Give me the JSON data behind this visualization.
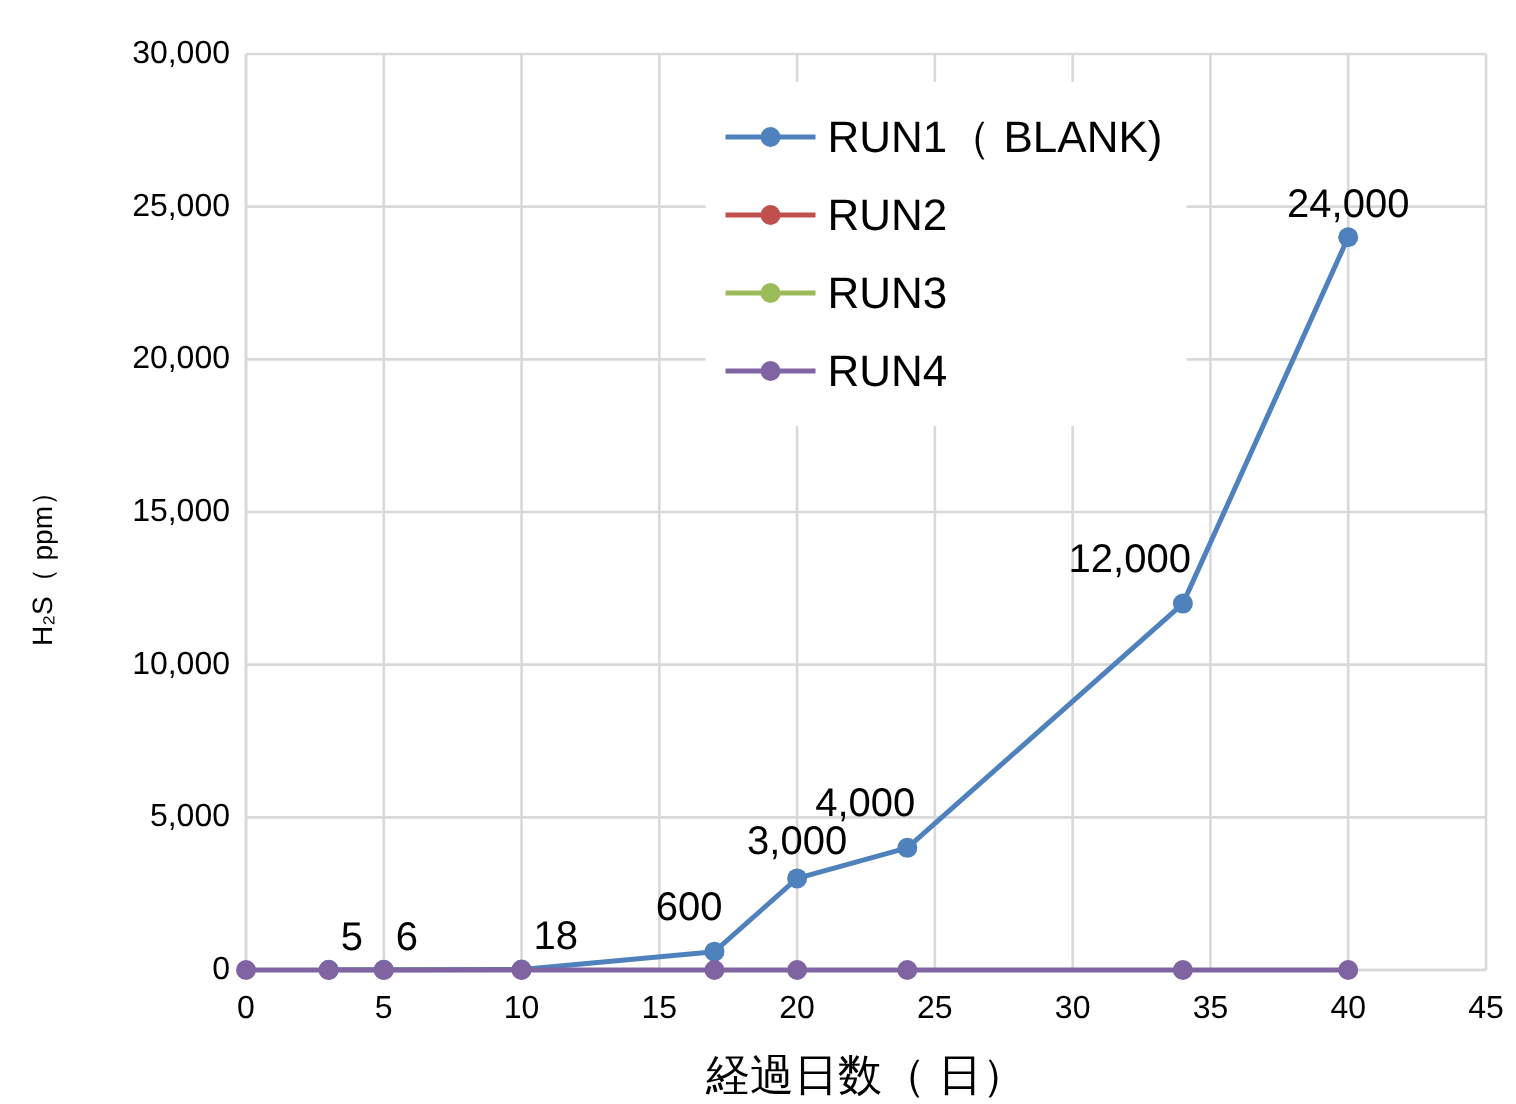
{
  "chart_data": {
    "type": "line",
    "xlabel": "経過日数（ 日）",
    "ylabel": "H₂S（ ppm）",
    "x": [
      0,
      3,
      5,
      10,
      17,
      20,
      24,
      34,
      40
    ],
    "series": [
      {
        "name": "RUN1（ BLANK)",
        "color": "#4f81bd",
        "values": [
          null,
          5,
          6,
          18,
          600,
          3000,
          4000,
          12000,
          24000
        ],
        "value_labels": [
          null,
          "5",
          "6",
          "18",
          "600",
          "3,000",
          "4,000",
          "12,000",
          "24,000"
        ]
      },
      {
        "name": "RUN2",
        "color": "#c0504d",
        "values": [
          null,
          null,
          null,
          null,
          null,
          null,
          null,
          null,
          null
        ]
      },
      {
        "name": "RUN3",
        "color": "#9bbb59",
        "values": [
          null,
          null,
          null,
          null,
          null,
          null,
          null,
          null,
          null
        ]
      },
      {
        "name": "RUN4",
        "color": "#8064a2",
        "values": [
          0,
          0,
          0,
          0,
          0,
          0,
          0,
          0,
          0
        ]
      }
    ],
    "xlim": [
      0,
      45
    ],
    "xticks": [
      0,
      5,
      10,
      15,
      20,
      25,
      30,
      35,
      40,
      45
    ],
    "ylim": [
      0,
      30000
    ],
    "yticks": [
      0,
      {
        "value": 5000,
        "label": "5,000"
      },
      {
        "value": 10000,
        "label": "10,000"
      },
      {
        "value": 15000,
        "label": "15,000"
      },
      {
        "value": 20000,
        "label": "20,000"
      },
      {
        "value": 25000,
        "label": "25,000"
      },
      {
        "value": 30000,
        "label": "30,000"
      }
    ],
    "grid": true,
    "legend": "top",
    "marker": "circle",
    "line_style": "solid"
  }
}
